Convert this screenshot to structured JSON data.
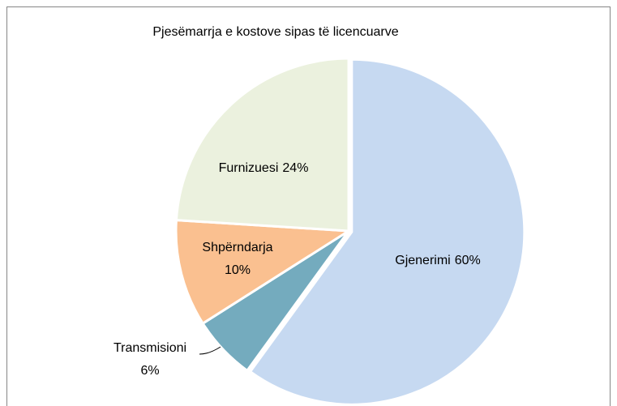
{
  "chart_data": {
    "type": "pie",
    "title": "Pjesëmarrja e kostove sipas të licencuarve",
    "categories": [
      "Gjenerimi",
      "Transmisioni",
      "Shpërndarja",
      "Furnizuesi"
    ],
    "values": [
      60,
      6,
      10,
      24
    ],
    "value_labels": [
      "60%",
      "6%",
      "10%",
      "24%"
    ],
    "colors": [
      "#c6d9f1",
      "#74abbe",
      "#fac090",
      "#ebf1de"
    ]
  }
}
